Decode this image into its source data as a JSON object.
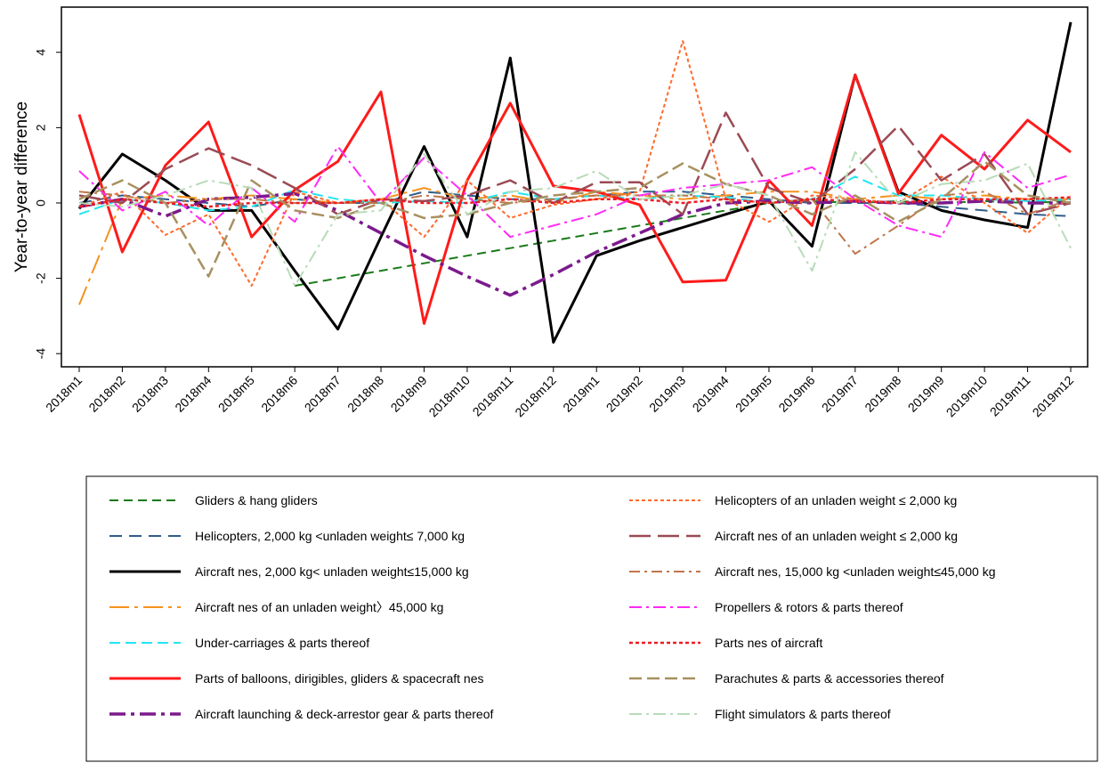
{
  "chart_data": {
    "type": "line",
    "y_label": "Year-to-year difference",
    "categories": [
      "2018m1",
      "2018m2",
      "2018m3",
      "2018m4",
      "2018m5",
      "2018m6",
      "2018m7",
      "2018m8",
      "2018m9",
      "2018m10",
      "2018m11",
      "2018m12",
      "2019m1",
      "2019m2",
      "2019m3",
      "2019m4",
      "2019m5",
      "2019m6",
      "2019m7",
      "2019m8",
      "2019m9",
      "2019m10",
      "2019m11",
      "2019m12"
    ],
    "ylim": [
      -4.35,
      5.2
    ],
    "yticks": [
      -4,
      -2,
      0,
      2,
      4
    ],
    "series": [
      {
        "name": "Gliders & hang gliders",
        "color": "#1a7a1a",
        "values": [
          null,
          null,
          null,
          null,
          null,
          -2.2,
          -2.0,
          -1.8,
          -1.6,
          -1.4,
          -1.2,
          -1.0,
          -0.8,
          -0.6,
          -0.4,
          -0.2,
          0.0,
          0.05,
          0.0,
          0.05,
          0.0,
          0.05,
          0.0,
          0.05
        ]
      },
      {
        "name": "Helicopters, 2,000 kg <unladen weight≤ 7,000 kg",
        "color": "#2f5d8a",
        "values": [
          0.0,
          0.2,
          0.1,
          0.0,
          -0.1,
          0.1,
          0.0,
          0.0,
          0.3,
          0.2,
          0.1,
          0.1,
          0.2,
          0.3,
          0.3,
          0.2,
          0.1,
          0.0,
          0.0,
          0.0,
          -0.1,
          -0.2,
          -0.3,
          -0.35
        ]
      },
      {
        "name": "Aircraft nes, 2,000 kg< unladen weight≤15,000 kg",
        "color": "#000000",
        "values": [
          -0.15,
          1.3,
          0.6,
          -0.2,
          -0.2,
          -1.8,
          -3.35,
          -0.9,
          1.5,
          -0.9,
          3.85,
          -3.7,
          -1.4,
          -1.0,
          -0.65,
          -0.3,
          0.05,
          -1.15,
          3.4,
          0.3,
          -0.2,
          -0.45,
          -0.65,
          4.8
        ]
      },
      {
        "name": "Aircraft nes of an unladen weight〉45,000 kg",
        "color": "#f5921e",
        "values": [
          -2.7,
          0.1,
          0.2,
          0.1,
          0.2,
          0.1,
          0.0,
          0.1,
          0.4,
          0.1,
          0.2,
          0.0,
          0.3,
          0.2,
          0.1,
          0.2,
          0.3,
          0.3,
          0.1,
          0.2,
          0.1,
          0.2,
          0.1,
          0.1
        ]
      },
      {
        "name": "Under-carriages & parts thereof",
        "color": "#22e5f0",
        "values": [
          -0.3,
          0.1,
          0.0,
          -0.2,
          -0.1,
          0.35,
          0.1,
          0.0,
          0.05,
          0.0,
          0.3,
          0.1,
          0.2,
          0.1,
          0.2,
          0.15,
          0.0,
          0.1,
          0.7,
          0.2,
          0.2,
          0.1,
          0.05,
          0.1
        ]
      },
      {
        "name": "Parts of balloons, dirigibles, gliders & spacecraft nes",
        "color": "#ff1a1a",
        "values": [
          2.35,
          -1.3,
          1.0,
          2.15,
          -0.9,
          0.35,
          1.1,
          2.95,
          -3.2,
          0.6,
          2.65,
          0.45,
          0.3,
          -0.05,
          -2.1,
          -2.05,
          0.6,
          -0.6,
          3.4,
          0.25,
          1.8,
          0.9,
          2.2,
          1.35
        ]
      },
      {
        "name": "Aircraft launching & deck-arrestor gear & parts thereof",
        "color": "#7b1a8c",
        "values": [
          -0.1,
          0.1,
          -0.35,
          0.1,
          0.15,
          0.25,
          -0.2,
          -0.8,
          -1.4,
          -1.95,
          -2.45,
          -1.9,
          -1.3,
          -0.8,
          -0.3,
          0.0,
          0.05,
          0.0,
          0.05,
          0.0,
          0.0,
          0.05,
          0.0,
          0.0
        ]
      },
      {
        "name": "Helicopters of an unladen weight ≤ 2,000 kg",
        "color": "#ff6a2a",
        "values": [
          -0.1,
          0.3,
          -0.85,
          -0.3,
          -2.2,
          0.3,
          0.0,
          0.1,
          -0.9,
          0.6,
          -0.4,
          -0.05,
          0.1,
          0.3,
          4.3,
          0.1,
          -0.5,
          0.2,
          0.1,
          0.0,
          0.7,
          0.0,
          -0.8,
          0.2
        ]
      },
      {
        "name": "Aircraft nes of an unladen weight ≤ 2,000 kg",
        "color": "#9b4a55",
        "values": [
          0.2,
          0.0,
          0.9,
          1.45,
          1.0,
          0.4,
          -0.3,
          0.1,
          0.05,
          0.2,
          0.6,
          0.0,
          0.55,
          0.55,
          -0.3,
          2.4,
          0.4,
          0.0,
          0.9,
          2.05,
          0.6,
          1.3,
          -0.3,
          0.0
        ]
      },
      {
        "name": "Aircraft nes, 15,000 kg <unladen weight≤45,000 kg",
        "color": "#c0764a",
        "values": [
          0.3,
          0.2,
          0.0,
          0.1,
          0.1,
          0.0,
          0.0,
          0.0,
          0.2,
          0.1,
          0.0,
          0.1,
          0.2,
          0.2,
          0.2,
          0.1,
          0.0,
          0.1,
          -1.35,
          -0.6,
          0.2,
          0.3,
          -0.3,
          0.1
        ]
      },
      {
        "name": "Propellers & rotors & parts thereof",
        "color": "#ff2af5",
        "values": [
          0.85,
          -0.2,
          0.3,
          -0.6,
          0.4,
          -0.5,
          1.5,
          0.0,
          1.2,
          0.2,
          -0.9,
          -0.6,
          -0.3,
          0.2,
          0.4,
          0.5,
          0.6,
          0.95,
          0.1,
          -0.6,
          -0.9,
          1.35,
          0.4,
          0.75
        ]
      },
      {
        "name": "Parts nes of aircraft",
        "color": "#ee1c25",
        "values": [
          -0.1,
          0.1,
          0.0,
          -0.1,
          0.0,
          0.0,
          0.0,
          0.1,
          0.0,
          0.0,
          0.1,
          0.0,
          0.1,
          0.1,
          0.0,
          0.1,
          0.0,
          0.1,
          0.05,
          0.0,
          0.1,
          0.1,
          0.1,
          0.15
        ]
      },
      {
        "name": "Parachutes & parts & accessories thereof",
        "color": "#a89060",
        "values": [
          0.1,
          0.6,
          0.0,
          -1.95,
          0.6,
          -0.2,
          -0.4,
          0.0,
          -0.4,
          -0.3,
          0.0,
          0.2,
          0.3,
          0.4,
          1.05,
          0.5,
          0.2,
          -0.3,
          0.2,
          -0.5,
          0.1,
          1.1,
          0.2,
          0.0
        ]
      },
      {
        "name": "Flight simulators & parts thereof",
        "color": "#b8dcb8",
        "values": [
          0.0,
          -0.1,
          0.2,
          0.6,
          0.4,
          -2.2,
          -0.3,
          -0.2,
          1.3,
          -0.3,
          0.3,
          0.4,
          0.85,
          0.1,
          0.2,
          0.5,
          0.2,
          -1.8,
          1.35,
          0.0,
          0.5,
          0.6,
          1.05,
          -1.2
        ]
      }
    ]
  }
}
